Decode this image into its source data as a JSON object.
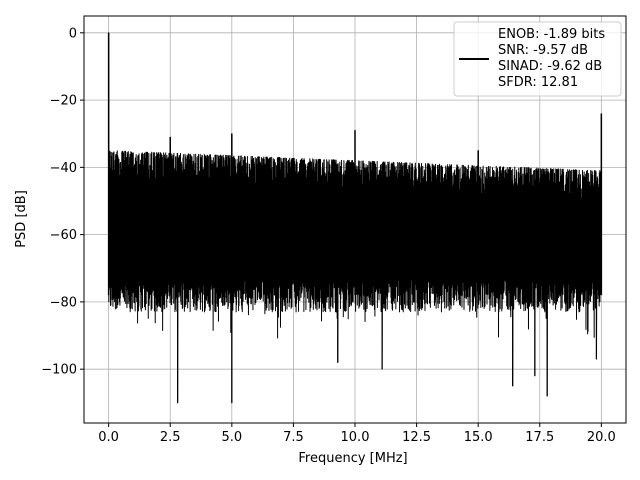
{
  "chart_data": {
    "type": "line",
    "title": "",
    "xlabel": "Frequency [MHz]",
    "ylabel": "PSD [dB]",
    "xlim": [
      -1.0,
      21.0
    ],
    "ylim": [
      -116,
      5
    ],
    "grid": true,
    "xticks": [
      0.0,
      2.5,
      5.0,
      7.5,
      10.0,
      12.5,
      15.0,
      17.5,
      20.0
    ],
    "xtick_labels": [
      "0.0",
      "2.5",
      "5.0",
      "7.5",
      "10.0",
      "12.5",
      "15.0",
      "17.5",
      "20.0"
    ],
    "yticks": [
      0,
      -20,
      -40,
      -60,
      -80,
      -100
    ],
    "ytick_labels": [
      "0",
      "−20",
      "−40",
      "−60",
      "−80",
      "−100"
    ],
    "legend": {
      "location": "top-right",
      "entries": [
        "ENOB: -1.89 bits",
        "SNR: -9.57 dB",
        "SINAD: -9.62 dB",
        "SFDR: 12.81"
      ]
    },
    "series": [
      {
        "color": "#000000",
        "x_range": [
          0.0,
          20.0
        ],
        "noise_ceiling_start": -35,
        "noise_ceiling_end": -41,
        "noise_floor_typical": -78,
        "peaks": [
          {
            "x": 0.0,
            "y": 0
          },
          {
            "x": 2.5,
            "y": -31
          },
          {
            "x": 5.0,
            "y": -30
          },
          {
            "x": 10.0,
            "y": -29
          },
          {
            "x": 15.0,
            "y": -35
          },
          {
            "x": 20.0,
            "y": -24
          }
        ],
        "deep_nulls": [
          {
            "x": 2.8,
            "y": -110
          },
          {
            "x": 5.0,
            "y": -110
          },
          {
            "x": 9.3,
            "y": -98
          },
          {
            "x": 11.1,
            "y": -100
          },
          {
            "x": 16.4,
            "y": -105
          },
          {
            "x": 17.3,
            "y": -102
          },
          {
            "x": 17.8,
            "y": -108
          },
          {
            "x": 19.8,
            "y": -97
          }
        ]
      }
    ]
  }
}
